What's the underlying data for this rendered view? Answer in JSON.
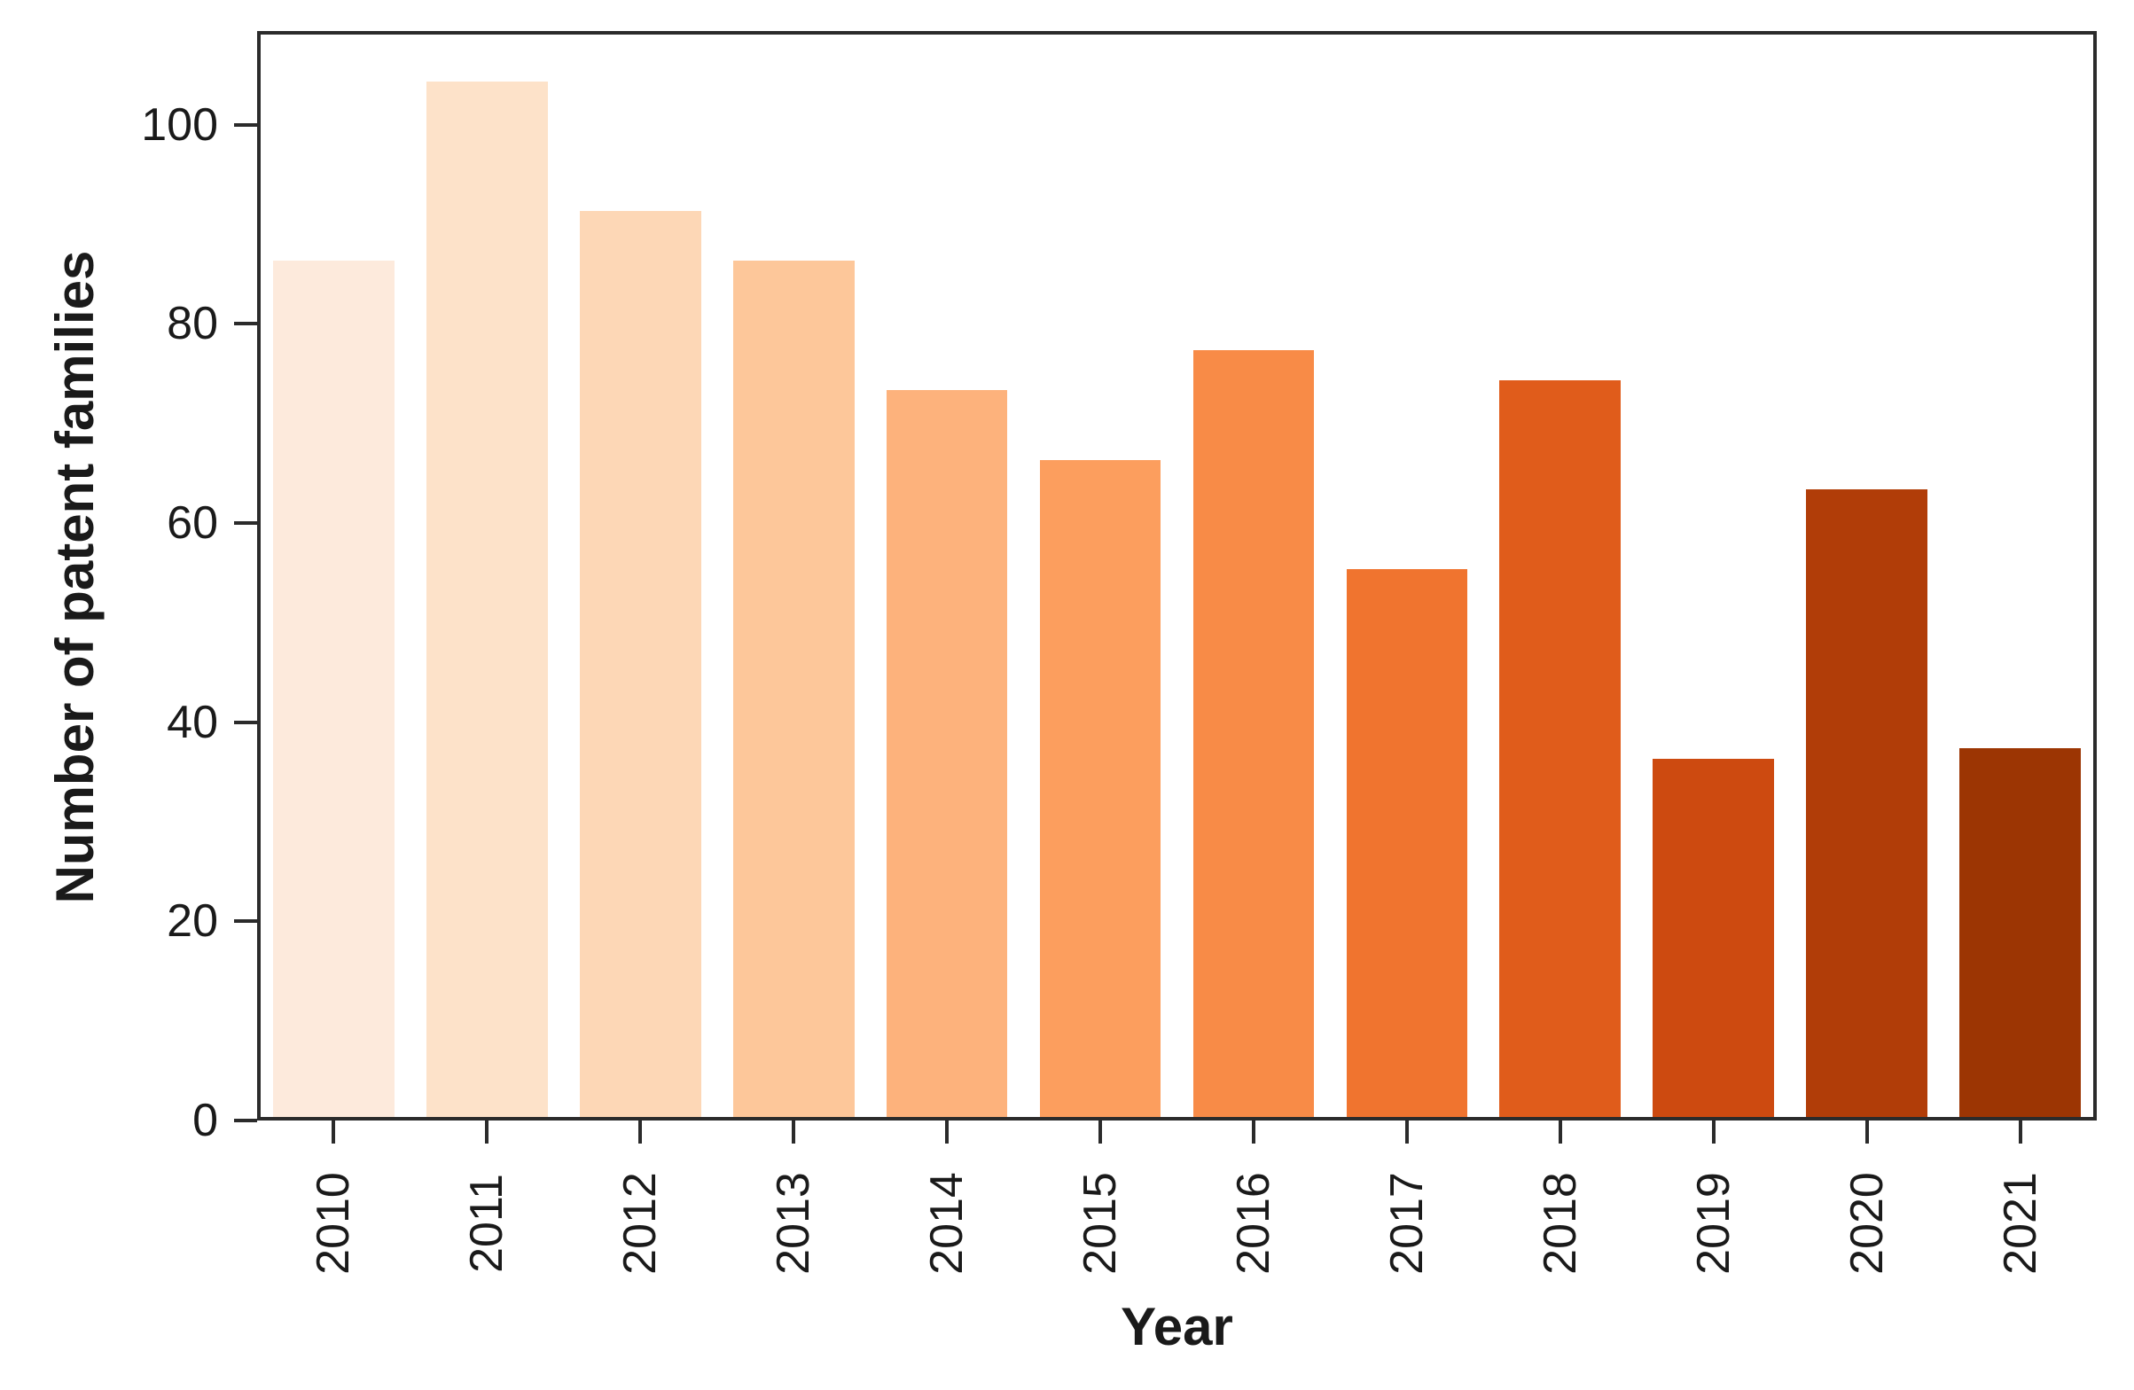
{
  "chart_data": {
    "type": "bar",
    "title": "",
    "xlabel": "Year",
    "ylabel": "Number of patent families",
    "categories": [
      "2010",
      "2011",
      "2012",
      "2013",
      "2014",
      "2015",
      "2016",
      "2017",
      "2018",
      "2019",
      "2020",
      "2021"
    ],
    "values": [
      86,
      104,
      91,
      86,
      73,
      66,
      77,
      55,
      74,
      36,
      63,
      37
    ],
    "bar_colors": [
      "#fdeadc",
      "#fde2c9",
      "#fdd7b6",
      "#fdc79a",
      "#fdb27c",
      "#fc9e5e",
      "#f88b47",
      "#f0742f",
      "#e05c1b",
      "#cd4a10",
      "#b13d08",
      "#9c3503"
    ],
    "ylim": [
      0,
      109.4
    ],
    "yticks": [
      0,
      20,
      40,
      60,
      80,
      100
    ],
    "grid": false,
    "legend": "none",
    "x_tick_rotation_deg": 90,
    "bar_width_fraction": 0.79,
    "axis_color": "#2b2b2b",
    "text_color": "#1a1a1a",
    "background_color": "#ffffff"
  }
}
